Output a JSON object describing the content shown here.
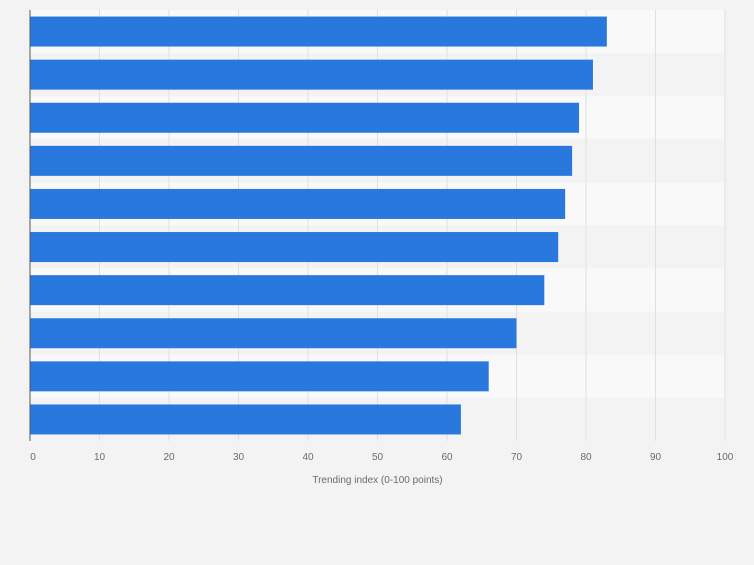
{
  "chart_data": {
    "type": "bar",
    "orientation": "horizontal",
    "title": "",
    "xlabel": "Trending index (0-100 points)",
    "ylabel": "",
    "categories": [
      "",
      "",
      "",
      "",
      "",
      "",
      "",
      "",
      "",
      ""
    ],
    "values": [
      83,
      81,
      79,
      78,
      77,
      76,
      74,
      70,
      66,
      62
    ],
    "xlim": [
      0,
      100
    ],
    "xticks": [
      0,
      10,
      20,
      30,
      40,
      50,
      60,
      70,
      80,
      90,
      100
    ],
    "xtick_labels": [
      "0",
      "10",
      "20",
      "30",
      "40",
      "50",
      "60",
      "70",
      "80",
      "90",
      "100"
    ],
    "grid": true,
    "legend": "none"
  },
  "colors": {
    "bar": "#2878de",
    "band_light": "#f9f9f9",
    "band_dark": "#f3f3f3",
    "grid": "#e0e0e0",
    "axis": "#555555",
    "text": "#6a6a6a"
  }
}
